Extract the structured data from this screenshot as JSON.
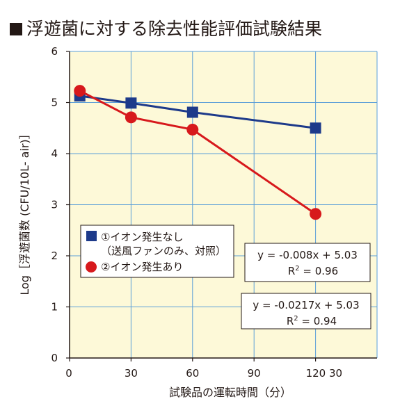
{
  "title": "浮遊菌に対する除去性能評価試験結果",
  "colors": {
    "plot_bg": "#fdf9d8",
    "grid": "#5a9ed8",
    "series1": "#1d3a8a",
    "series2": "#d7191c",
    "axis": "#231815"
  },
  "chart_data": {
    "type": "line",
    "xlabel": "試験品の運転時間（分）",
    "ylabel": "Log［浮遊菌数 (CFU/10L- air)］",
    "xlim": [
      0,
      150
    ],
    "ylim": [
      0,
      6
    ],
    "xticks": [
      0,
      30,
      60,
      90,
      120
    ],
    "xtick_labels": [
      "0",
      "30",
      "60",
      "90",
      "120 30"
    ],
    "yticks": [
      0,
      1,
      2,
      3,
      4,
      5,
      6
    ],
    "grid": true,
    "series": [
      {
        "name": "①イオン発生なし（送風ファンのみ、対照）",
        "marker": "square",
        "color": "#1d3a8a",
        "x": [
          5,
          30,
          60,
          120
        ],
        "y": [
          5.13,
          4.99,
          4.81,
          4.5
        ]
      },
      {
        "name": "②イオン発生あり",
        "marker": "circle",
        "color": "#d7191c",
        "x": [
          5,
          30,
          60,
          120
        ],
        "y": [
          5.23,
          4.71,
          4.47,
          2.82
        ]
      }
    ],
    "legend": {
      "placement": "left",
      "entries": [
        {
          "marker": "square",
          "lines": [
            "①イオン発生なし",
            "（送風ファンのみ、対照）"
          ]
        },
        {
          "marker": "circle",
          "lines": [
            "②イオン発生あり"
          ]
        }
      ]
    },
    "annotations": [
      {
        "line1": "y = -0.008x + 5.03",
        "r2_prefix": "R",
        "r2_exp": "2",
        "r2_suffix": " = 0.96"
      },
      {
        "line1": "y = -0.0217x + 5.03",
        "r2_prefix": "R",
        "r2_exp": "2",
        "r2_suffix": " = 0.94"
      }
    ]
  }
}
